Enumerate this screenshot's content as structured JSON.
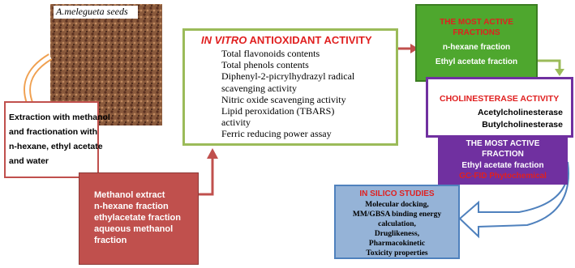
{
  "photo": {
    "label": "A.melegueta seeds"
  },
  "extraction": {
    "lines": [
      "Extraction with methanol",
      "and fractionation with",
      "n-hexane, ethyl acetate",
      "and water"
    ]
  },
  "fractions": {
    "lines": [
      "Methanol extract",
      "n-hexane fraction",
      "ethylacetate fraction",
      "aqueous methanol",
      "fraction"
    ]
  },
  "antioxidant": {
    "title_italic": "IN VITRO",
    "title_rest": "ANTIOXIDANT ACTIVITY",
    "lines": [
      "Total flavonoids contents",
      "Total phenols contents",
      "Diphenyl-2-picrylhydrazyl radical",
      "scavenging activity",
      "Nitric oxide scavenging activity",
      "Lipid peroxidation (TBARS)",
      "activity",
      "Ferric reducing power assay"
    ]
  },
  "active_fractions": {
    "title": [
      "THE MOST ACTIVE",
      "FRACTIONS"
    ],
    "items": [
      "n-hexane fraction",
      "Ethyl acetate fraction"
    ]
  },
  "cholinesterase": {
    "title": "CHOLINESTERASE ACTIVITY",
    "items": [
      "Acetylcholinesterase",
      "Butylcholinesterase"
    ]
  },
  "most_active": {
    "title": [
      "THE MOST ACTIVE",
      "FRACTION"
    ],
    "item": "Ethyl acetate fraction",
    "note": "GC-FID Phytochemical"
  },
  "in_silico": {
    "title": "IN SILICO STUDIES",
    "lines": [
      "Molecular docking,",
      "MM/GBSA binding energy",
      "calculation,",
      "Druglikeness,",
      "Pharmacokinetic",
      "Toxicity properties"
    ]
  }
}
